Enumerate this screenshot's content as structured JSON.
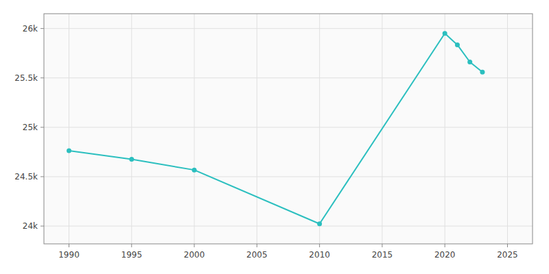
{
  "chart_data": {
    "type": "line",
    "x": [
      1990,
      1995,
      2000,
      2010,
      2020,
      2021,
      2022,
      2023
    ],
    "values": [
      24763,
      24676,
      24568,
      24023,
      25951,
      25835,
      25661,
      25559
    ],
    "color": "#2bbfbf",
    "marker": "circle",
    "xlim": [
      1988,
      2027
    ],
    "ylim": [
      23820,
      26150
    ],
    "xticks": [
      1990,
      1995,
      2000,
      2005,
      2010,
      2015,
      2020,
      2025
    ],
    "yticks": [
      {
        "value": 24000,
        "label": "24k"
      },
      {
        "value": 24500,
        "label": "24.5k"
      },
      {
        "value": 25000,
        "label": "25k"
      },
      {
        "value": 25500,
        "label": "25.5k"
      },
      {
        "value": 26000,
        "label": "26k"
      }
    ],
    "grid": true
  }
}
